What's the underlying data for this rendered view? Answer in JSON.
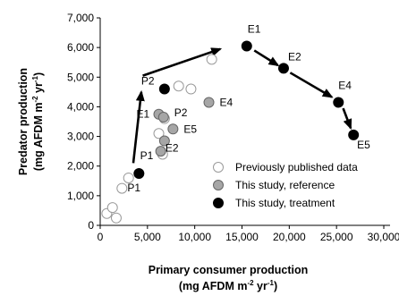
{
  "chart_data": {
    "type": "scatter",
    "xlim": [
      0,
      30000
    ],
    "ylim": [
      0,
      7000
    ],
    "x_ticks": [
      "0",
      "5,000",
      "10,000",
      "15,000",
      "20,000",
      "25,000",
      "30,000"
    ],
    "y_ticks": [
      "0",
      "1,000",
      "2,000",
      "3,000",
      "4,000",
      "5,000",
      "6,000",
      "7,000"
    ],
    "x_tick_values": [
      0,
      5000,
      10000,
      15000,
      20000,
      25000,
      30000
    ],
    "y_tick_values": [
      0,
      1000,
      2000,
      3000,
      4000,
      5000,
      6000,
      7000
    ],
    "xlabel": {
      "line1": "Primary consumer production",
      "line2_pre": "(mg AFDM m",
      "sup1": "-2",
      "line2_mid": " yr",
      "sup2": "-1",
      "line2_post": ")"
    },
    "ylabel": {
      "line1": "Predator production",
      "line2_pre": "(mg AFDM m",
      "sup1": "-2",
      "line2_mid": " yr",
      "sup2": "-1",
      "line2_post": ")"
    },
    "grid": false,
    "legend_position": "bottom-right",
    "series": [
      {
        "name": "Previously published data",
        "style": "open",
        "color": "#ffffff",
        "edge": "#9a9a9a",
        "points": [
          {
            "x": 700,
            "y": 400
          },
          {
            "x": 1300,
            "y": 600
          },
          {
            "x": 1700,
            "y": 250
          },
          {
            "x": 2300,
            "y": 1250
          },
          {
            "x": 3000,
            "y": 1600
          },
          {
            "x": 6200,
            "y": 3100
          },
          {
            "x": 6600,
            "y": 2400
          },
          {
            "x": 6800,
            "y": 3600
          },
          {
            "x": 8300,
            "y": 4700
          },
          {
            "x": 9600,
            "y": 4600
          },
          {
            "x": 11800,
            "y": 5600
          }
        ]
      },
      {
        "name": "This study, reference",
        "style": "gray",
        "color": "#a6a6a6",
        "edge": "#666666",
        "points": [
          {
            "x": 6200,
            "y": 3750,
            "label": "E1"
          },
          {
            "x": 6700,
            "y": 3650,
            "label": "P2"
          },
          {
            "x": 6800,
            "y": 2850,
            "label": "E2"
          },
          {
            "x": 6400,
            "y": 2500,
            "label": "P1"
          },
          {
            "x": 7700,
            "y": 3250,
            "label": "E5"
          },
          {
            "x": 11500,
            "y": 4150,
            "label": "E4"
          }
        ]
      },
      {
        "name": "This study, treatment",
        "style": "black",
        "color": "#000000",
        "edge": "#000000",
        "points": [
          {
            "x": 4100,
            "y": 1750,
            "label": "P1"
          },
          {
            "x": 6800,
            "y": 4600,
            "label": "P2"
          },
          {
            "x": 15500,
            "y": 6050,
            "label": "E1"
          },
          {
            "x": 19400,
            "y": 5300,
            "label": "E2"
          },
          {
            "x": 25200,
            "y": 4150,
            "label": "E4"
          },
          {
            "x": 26800,
            "y": 3050,
            "label": "E5"
          }
        ]
      }
    ],
    "arrows": [
      {
        "from": [
          3500,
          2100
        ],
        "to": [
          4350,
          4500
        ]
      },
      {
        "from": [
          4500,
          5050
        ],
        "to": [
          12700,
          5950
        ]
      },
      {
        "from": [
          16300,
          5900
        ],
        "to": [
          18800,
          5400
        ]
      },
      {
        "from": [
          20100,
          5150
        ],
        "to": [
          24500,
          4330
        ]
      },
      {
        "from": [
          25700,
          3950
        ],
        "to": [
          26500,
          3280
        ]
      }
    ]
  }
}
